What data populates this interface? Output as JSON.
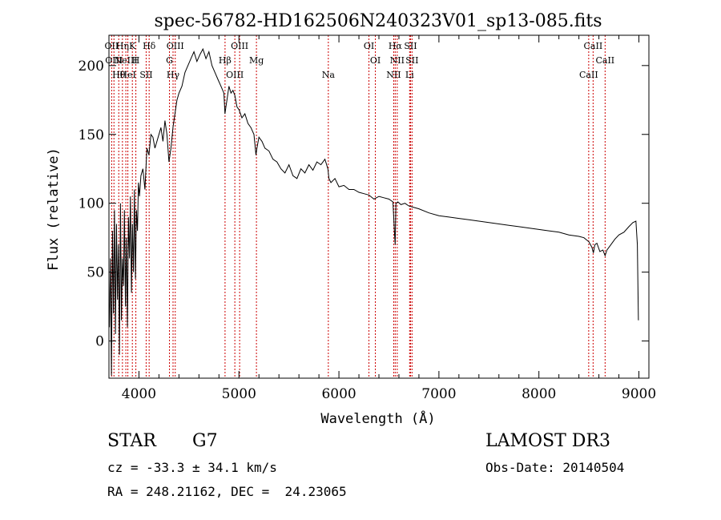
{
  "footer": {
    "class_label": "STAR",
    "subclass": "G7",
    "survey": "LAMOST DR3",
    "cz_text": "cz = -33.3 ± 34.1 km/s",
    "obs_date": "Obs-Date: 20140504",
    "coords": "RA = 248.21162, DEC =  24.23065"
  },
  "chart_data": {
    "type": "line",
    "title": "spec-56782-HD162506N240323V01_sp13-085.fits",
    "xlabel": "Wavelength (Å)",
    "ylabel": "Flux (relative)",
    "xlim": [
      3700,
      9100
    ],
    "ylim": [
      -27,
      222
    ],
    "xticks": [
      4000,
      5000,
      6000,
      7000,
      8000,
      9000
    ],
    "yticks": [
      0,
      50,
      100,
      150,
      200
    ],
    "grid": false,
    "line_color": "#000000",
    "marker_color": "#cc0000",
    "series": [
      {
        "x": [
          3705,
          3715,
          3725,
          3735,
          3745,
          3755,
          3765,
          3775,
          3785,
          3795,
          3805,
          3815,
          3825,
          3835,
          3845,
          3855,
          3865,
          3875,
          3885,
          3895,
          3905,
          3915,
          3925,
          3935,
          3945,
          3955,
          3965,
          3975,
          3985,
          3995,
          4005,
          4020,
          4040,
          4060,
          4080,
          4100,
          4120,
          4140,
          4160,
          4180,
          4200,
          4220,
          4240,
          4260,
          4280,
          4300,
          4320,
          4340,
          4360,
          4380,
          4400,
          4430,
          4460,
          4490,
          4520,
          4550,
          4580,
          4610,
          4640,
          4670,
          4700,
          4730,
          4760,
          4790,
          4820,
          4850,
          4860,
          4870,
          4880,
          4900,
          4920,
          4940,
          4960,
          4980,
          5000,
          5030,
          5060,
          5090,
          5120,
          5150,
          5170,
          5180,
          5200,
          5230,
          5260,
          5300,
          5340,
          5380,
          5420,
          5460,
          5500,
          5540,
          5580,
          5620,
          5660,
          5700,
          5740,
          5780,
          5820,
          5860,
          5890,
          5900,
          5920,
          5960,
          6000,
          6050,
          6100,
          6150,
          6200,
          6250,
          6300,
          6350,
          6400,
          6450,
          6500,
          6540,
          6555,
          6563,
          6570,
          6590,
          6620,
          6660,
          6700,
          6750,
          6800,
          6900,
          7000,
          7100,
          7200,
          7300,
          7400,
          7500,
          7600,
          7700,
          7800,
          7900,
          8000,
          8100,
          8200,
          8300,
          8400,
          8450,
          8500,
          8530,
          8545,
          8560,
          8580,
          8610,
          8640,
          8662,
          8680,
          8720,
          8760,
          8800,
          8850,
          8900,
          8940,
          8970,
          8985,
          8990,
          8995
        ],
        "y": [
          10,
          60,
          -25,
          80,
          20,
          95,
          5,
          85,
          30,
          70,
          -10,
          100,
          15,
          60,
          40,
          95,
          25,
          75,
          10,
          90,
          60,
          105,
          35,
          85,
          50,
          110,
          45,
          95,
          80,
          115,
          105,
          120,
          125,
          110,
          140,
          135,
          150,
          148,
          140,
          145,
          150,
          155,
          145,
          160,
          150,
          130,
          140,
          155,
          165,
          175,
          180,
          185,
          195,
          200,
          205,
          210,
          203,
          208,
          212,
          205,
          210,
          200,
          195,
          190,
          185,
          180,
          165,
          170,
          175,
          185,
          180,
          182,
          178,
          170,
          168,
          162,
          165,
          158,
          155,
          150,
          135,
          140,
          148,
          145,
          140,
          138,
          132,
          130,
          125,
          122,
          128,
          120,
          118,
          125,
          122,
          128,
          124,
          130,
          128,
          132,
          125,
          118,
          115,
          118,
          112,
          113,
          110,
          110,
          108,
          107,
          106,
          103,
          105,
          104,
          103,
          101,
          80,
          70,
          100,
          101,
          99,
          100,
          98,
          97,
          96,
          93,
          91,
          90,
          89,
          88,
          87,
          86,
          85,
          84,
          83,
          82,
          81,
          80,
          79,
          77,
          76,
          75,
          72,
          68,
          64,
          70,
          71,
          65,
          66,
          62,
          66,
          70,
          74,
          77,
          79,
          83,
          86,
          87,
          70,
          40,
          15
        ]
      }
    ],
    "line_markers": [
      {
        "wave": 3727,
        "labels": [
          "OII"
        ]
      },
      {
        "wave": 3750,
        "labels": [
          "OIII"
        ]
      },
      {
        "wave": 3798,
        "labels": [
          "Hθ"
        ]
      },
      {
        "wave": 3835,
        "labels": [
          "Hη"
        ]
      },
      {
        "wave": 3869,
        "labels": [
          "NeIII"
        ]
      },
      {
        "wave": 3889,
        "labels": [
          "HeI"
        ]
      },
      {
        "wave": 3934,
        "labels": [
          "K"
        ]
      },
      {
        "wave": 3969,
        "labels": [
          "H"
        ]
      },
      {
        "wave": 4072,
        "labels": [
          "SII"
        ]
      },
      {
        "wave": 4102,
        "labels": [
          "Hδ"
        ]
      },
      {
        "wave": 4305,
        "labels": [
          "G"
        ]
      },
      {
        "wave": 4341,
        "labels": [
          "Hγ"
        ]
      },
      {
        "wave": 4363,
        "labels": [
          "OIII"
        ]
      },
      {
        "wave": 4861,
        "labels": [
          "Hβ"
        ]
      },
      {
        "wave": 4959,
        "labels": [
          "OIII"
        ]
      },
      {
        "wave": 5007,
        "labels": [
          "OIII"
        ]
      },
      {
        "wave": 5175,
        "labels": [
          "Mg"
        ]
      },
      {
        "wave": 5894,
        "labels": [
          "Na"
        ]
      },
      {
        "wave": 6300,
        "labels": [
          "OI"
        ]
      },
      {
        "wave": 6364,
        "labels": [
          "OI"
        ]
      },
      {
        "wave": 6548,
        "labels": [
          "NII"
        ]
      },
      {
        "wave": 6563,
        "labels": [
          "Hα"
        ]
      },
      {
        "wave": 6583,
        "labels": [
          "NII"
        ]
      },
      {
        "wave": 6707,
        "labels": [
          "Li"
        ]
      },
      {
        "wave": 6716,
        "labels": [
          "SII"
        ]
      },
      {
        "wave": 6731,
        "labels": [
          "SII"
        ]
      },
      {
        "wave": 8498,
        "labels": [
          "CaII"
        ]
      },
      {
        "wave": 8542,
        "labels": [
          "CaII"
        ]
      },
      {
        "wave": 8662,
        "labels": [
          "CaII"
        ]
      }
    ]
  }
}
